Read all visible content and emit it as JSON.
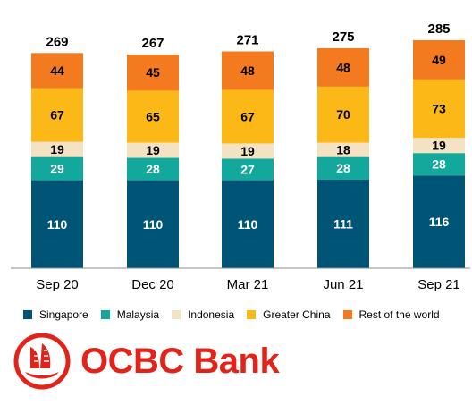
{
  "chart_data": {
    "type": "bar",
    "stacked": true,
    "categories": [
      "Sep 20",
      "Dec 20",
      "Mar 21",
      "Jun 21",
      "Sep 21"
    ],
    "totals": [
      269,
      267,
      271,
      275,
      285
    ],
    "series": [
      {
        "name": "Singapore",
        "color": "#005577",
        "label_color": "#ffffff",
        "values": [
          110,
          110,
          110,
          111,
          116
        ]
      },
      {
        "name": "Malaysia",
        "color": "#12a89b",
        "label_color": "#ffffff",
        "values": [
          29,
          28,
          27,
          28,
          28
        ]
      },
      {
        "name": "Indonesia",
        "color": "#f3e3c2",
        "label_color": "#000000",
        "values": [
          19,
          19,
          19,
          18,
          19
        ]
      },
      {
        "name": "Greater China",
        "color": "#fbb817",
        "label_color": "#000000",
        "values": [
          67,
          65,
          67,
          70,
          73
        ]
      },
      {
        "name": "Rest of the world",
        "color": "#f47a20",
        "label_color": "#000000",
        "values": [
          44,
          45,
          48,
          48,
          49
        ]
      }
    ],
    "ylim": [
      0,
      300
    ],
    "grid": false,
    "legend_position": "bottom"
  },
  "branding": {
    "logo_text": "OCBC Bank",
    "logo_color": "#e2231a",
    "logo_icon": "junk-sailboat-logo-icon"
  }
}
